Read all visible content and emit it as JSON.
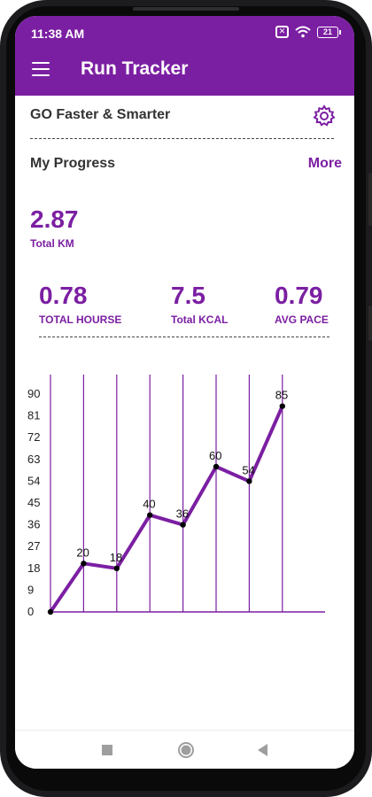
{
  "status_bar": {
    "time": "11:38 AM",
    "battery": "21",
    "icons": [
      "no-sim-icon",
      "wifi-icon",
      "battery-icon"
    ]
  },
  "app_bar": {
    "title": "Run Tracker",
    "menu_icon": "hamburger-menu-icon",
    "background": "#7b1fa2"
  },
  "header": {
    "tagline": "GO Faster & Smarter",
    "settings_icon": "gear-icon"
  },
  "progress": {
    "title": "My Progress",
    "more_label": "More",
    "total_km": "2.87",
    "total_km_label": "Total KM",
    "stats": [
      {
        "value": "0.78",
        "label": "TOTAL HOURSE"
      },
      {
        "value": "7.5",
        "label": "Total KCAL"
      },
      {
        "value": "0.79",
        "label": "AVG PACE"
      }
    ]
  },
  "colors": {
    "accent": "#7b1fa2",
    "text": "#333333"
  },
  "chart_data": {
    "type": "line",
    "x": [
      0,
      1,
      2,
      3,
      4,
      5,
      6,
      7
    ],
    "values": [
      0,
      20,
      18,
      40,
      36,
      60,
      54,
      85
    ],
    "point_labels": [
      "",
      "20",
      "18",
      "40",
      "36",
      "60",
      "54",
      "85"
    ],
    "y_ticks": [
      "0",
      "9",
      "18",
      "27",
      "36",
      "45",
      "54",
      "63",
      "72",
      "81",
      "90"
    ],
    "ylim": [
      0,
      90
    ],
    "grid": "vertical",
    "line_color": "#7b1fa2",
    "title": "",
    "xlabel": "",
    "ylabel": ""
  },
  "navbar": {
    "buttons": [
      "recents-square-icon",
      "home-circle-icon",
      "back-triangle-icon"
    ]
  }
}
